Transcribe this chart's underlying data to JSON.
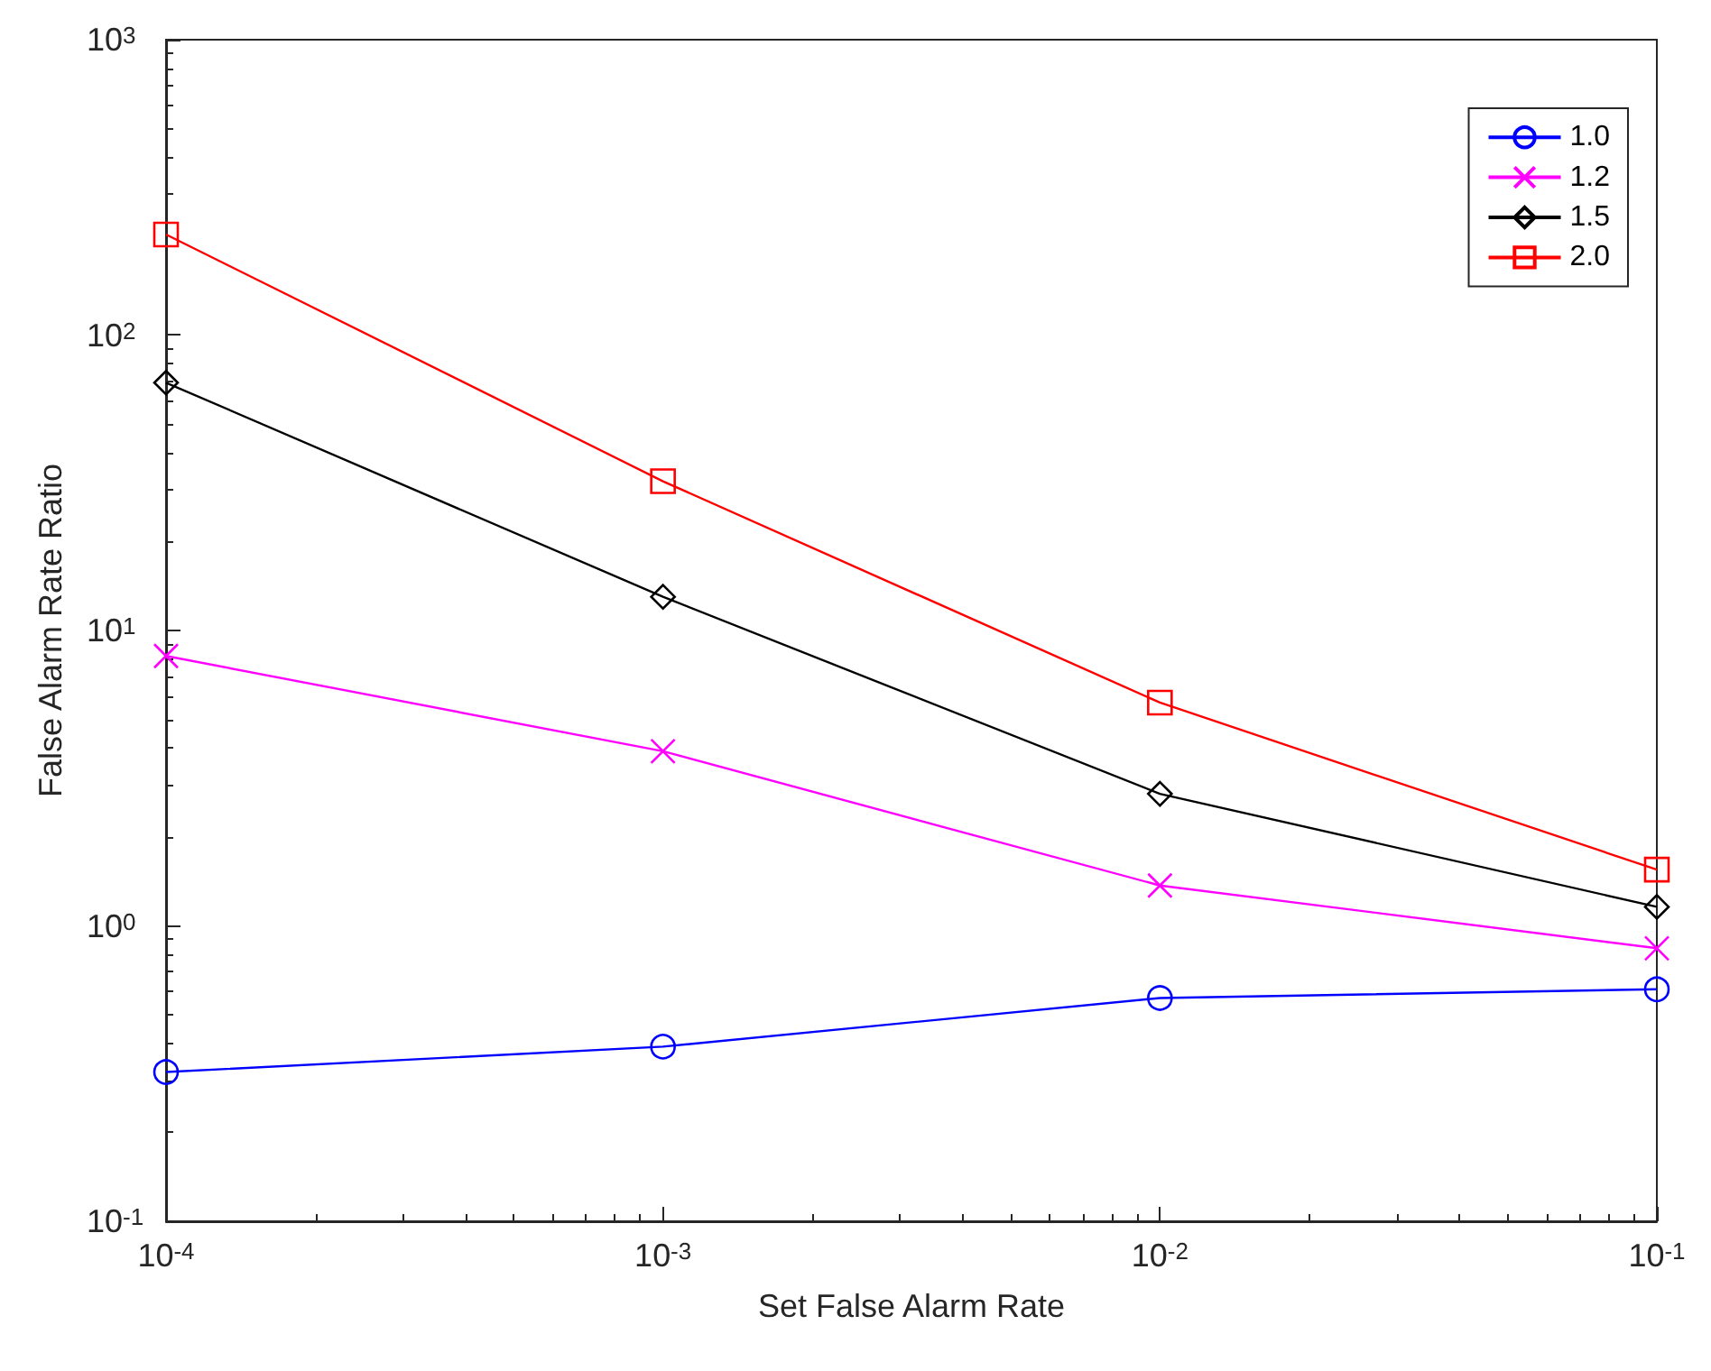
{
  "chart_data": {
    "type": "line",
    "xlabel": "Set False Alarm Rate",
    "ylabel": "False Alarm Rate Ratio",
    "x": [
      0.0001,
      0.001,
      0.01,
      0.1
    ],
    "series": [
      {
        "name": "1.0",
        "color": "#0000ff",
        "marker": "circle",
        "values": [
          0.32,
          0.39,
          0.57,
          0.61
        ]
      },
      {
        "name": "1.2",
        "color": "#ff00ff",
        "marker": "cross",
        "values": [
          8.2,
          3.9,
          1.37,
          0.84
        ]
      },
      {
        "name": "1.5",
        "color": "#000000",
        "marker": "diamond",
        "values": [
          69,
          13,
          2.8,
          1.16
        ]
      },
      {
        "name": "2.0",
        "color": "#ff0000",
        "marker": "square",
        "values": [
          219,
          32,
          5.7,
          1.55
        ]
      }
    ],
    "log": "xy",
    "xlim": [
      0.0001,
      0.1
    ],
    "ylim": [
      0.1,
      1000
    ],
    "xticks": [
      {
        "value": 0.0001,
        "label": "10$^{-4}$"
      },
      {
        "value": 0.001,
        "label": "10$^{-3}$"
      },
      {
        "value": 0.01,
        "label": "10$^{-2}$"
      },
      {
        "value": 0.1,
        "label": "10$^{-1}$"
      }
    ],
    "yticks": [
      {
        "value": 0.1,
        "label": "10$^{-1}$"
      },
      {
        "value": 1,
        "label": "10$^{0}$"
      },
      {
        "value": 10,
        "label": "10$^{1}$"
      },
      {
        "value": 100,
        "label": "10$^{2}$"
      },
      {
        "value": 1000,
        "label": "10$^{3}$"
      }
    ],
    "grid": false,
    "legend": "top right",
    "line_style": "solid"
  }
}
